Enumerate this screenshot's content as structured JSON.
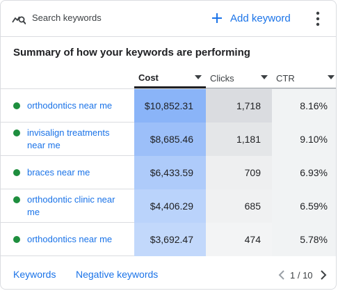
{
  "header": {
    "title": "Search keywords",
    "add_label": "Add keyword",
    "search_icon": "search-trend-icon",
    "more_icon": "more-vert-icon"
  },
  "summary": {
    "title": "Summary of how your keywords are performing"
  },
  "columns": [
    {
      "label": "Cost",
      "sorted": true
    },
    {
      "label": "Clicks",
      "sorted": false
    },
    {
      "label": "CTR",
      "sorted": false
    }
  ],
  "rows": [
    {
      "keyword_lines": [
        "orthodontics near me"
      ],
      "cost": "$10,852.31",
      "clicks": "1,718",
      "ctr": "8.16%",
      "cost_color": "#8ab4f8",
      "clicks_color": "#dadce0"
    },
    {
      "keyword_lines": [
        "invisalign treatments",
        "near me"
      ],
      "cost": "$8,685.46",
      "clicks": "1,181",
      "ctr": "9.10%",
      "cost_color": "#9cbff9",
      "clicks_color": "#e4e6e8"
    },
    {
      "keyword_lines": [
        "braces near me"
      ],
      "cost": "$6,433.59",
      "clicks": "709",
      "ctr": "6.93%",
      "cost_color": "#aecbfa",
      "clicks_color": "#eeeff0"
    },
    {
      "keyword_lines": [
        "orthodontic clinic near",
        "me"
      ],
      "cost": "$4,406.29",
      "clicks": "685",
      "ctr": "6.59%",
      "cost_color": "#bad3fb",
      "clicks_color": "#f0f1f2"
    },
    {
      "keyword_lines": [
        "orthodontics near me"
      ],
      "cost": "$3,692.47",
      "clicks": "474",
      "ctr": "5.78%",
      "cost_color": "#c2d8fb",
      "clicks_color": "#f3f4f5"
    }
  ],
  "status_color": "#1e8e3e",
  "footer": {
    "keywords_link": "Keywords",
    "negative_link": "Negative keywords",
    "pager": "1 / 10"
  }
}
